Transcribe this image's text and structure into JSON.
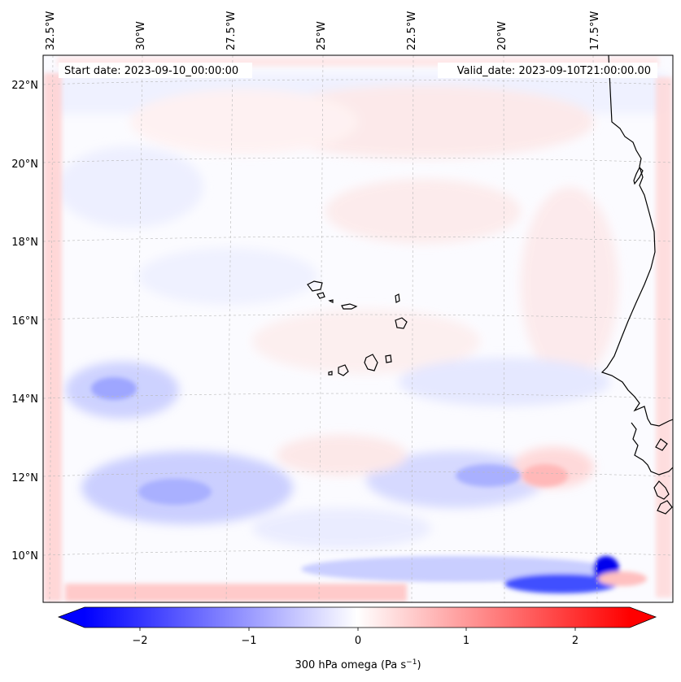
{
  "header": {
    "start_date": "Start date: 2023-09-10_00:00:00",
    "valid_date": "Valid_date: 2023-09-10T21:00:00.00"
  },
  "map": {
    "longitude_labels": [
      "32.5°W",
      "30°W",
      "27.5°W",
      "25°W",
      "22.5°W",
      "20°W",
      "17.5°W"
    ],
    "latitude_labels": [
      "22°N",
      "20°N",
      "18°N",
      "16°N",
      "14°N",
      "12°N",
      "10°N"
    ],
    "colormap": "bwr",
    "negative_color": "#0000ff",
    "neutral_color": "#ffffff",
    "positive_color": "#ff0000",
    "coastline_color": "#000000",
    "gridlines": true
  },
  "colorbar": {
    "ticks": [
      "−2",
      "−1",
      "0",
      "1",
      "2"
    ],
    "label_main": "300 hPa omega (Pa s",
    "label_sup": "−1",
    "label_end": ")",
    "extend": "both"
  }
}
